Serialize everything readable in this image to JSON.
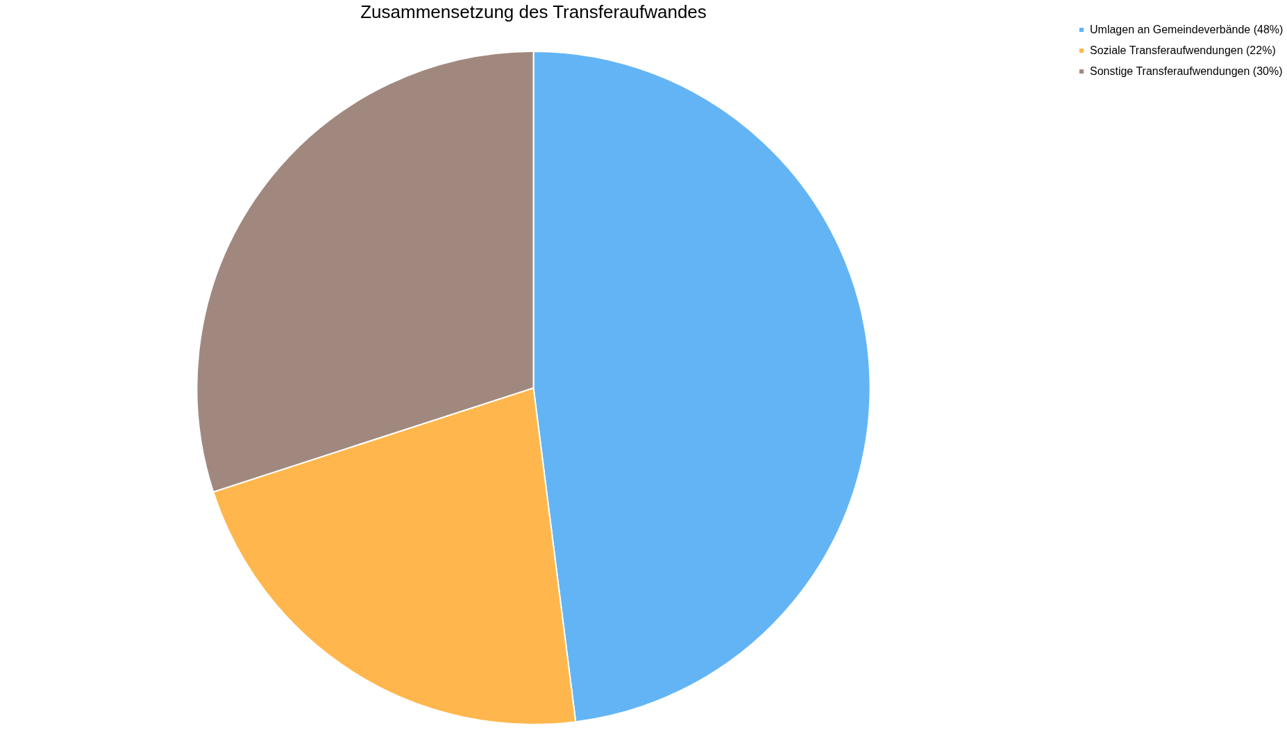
{
  "chart_data": {
    "type": "pie",
    "title": "Zusammensetzung des Transferaufwandes",
    "categories": [
      "Umlagen an Gemeindeverbände (48%)",
      "Soziale Transferaufwendungen (22%)",
      "Sonstige Transferaufwendungen (30%)"
    ],
    "values": [
      48,
      22,
      30
    ],
    "colors": [
      "#63b4f5",
      "#ffb74d",
      "#a1887f"
    ],
    "legend": "right"
  }
}
